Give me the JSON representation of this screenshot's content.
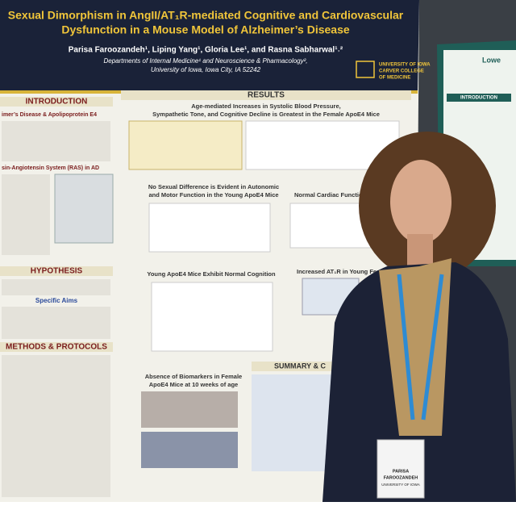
{
  "poster": {
    "title_lines": [
      "Sexual Dimorphism in AngII/AT₁R-mediated Cognitive and Cardiovascular",
      "Dysfunction in a Mouse Model of Alzheimer’s Disease"
    ],
    "authors": "Parisa Faroozandeh¹, Liping Yang¹, Gloria Lee¹, and Rasna Sabharwal¹˒²",
    "affiliation_lines": [
      "Departments of Internal Medicine¹ and Neuroscience & Pharmacology²,",
      "University of Iowa, Iowa City, IA 52242"
    ],
    "logo_lines": [
      "UNIVERSITY OF IOWA",
      "CARVER COLLEGE",
      "OF MEDICINE"
    ],
    "sections": {
      "introduction": "INTRODUCTION",
      "intro_sub1": "imer’s Disease & Apolipoprotein E4",
      "intro_sub2": "sin-Angiotensin System (RAS) in AD",
      "hypothesis": "HYPOTHESIS",
      "specific_aims": "Specific Aims",
      "methods": "METHODS & PROTOCOLS",
      "results": "RESULTS",
      "summary": "SUMMARY & C"
    },
    "results_headings": {
      "age_lines": [
        "Age-mediated Increases in Systolic Blood Pressure,",
        "Sympathetic Tone, and Cognitive Decline is Greatest in the Female ApoE4 Mice"
      ],
      "sex_lines": [
        "No Sexual Difference is Evident in Autonomic",
        "and Motor Function in the Young ApoE4 Mice"
      ],
      "cardiac": "Normal Cardiac Function in Young",
      "cognition": "Young ApoE4 Mice Exhibit Normal Cognition",
      "biomarker_lines": [
        "Absence of Biomarkers in Female",
        "ApoE4 Mice at 10 weeks of age"
      ],
      "at1r": "Increased AT₁R in Young Female A"
    },
    "side_poster": {
      "title": "Lowe",
      "section": "INTRODUCTION"
    },
    "badge_lines": [
      "PARISA",
      "FAROOZANDEH",
      "UNIVERSITY OF IOWA"
    ]
  }
}
